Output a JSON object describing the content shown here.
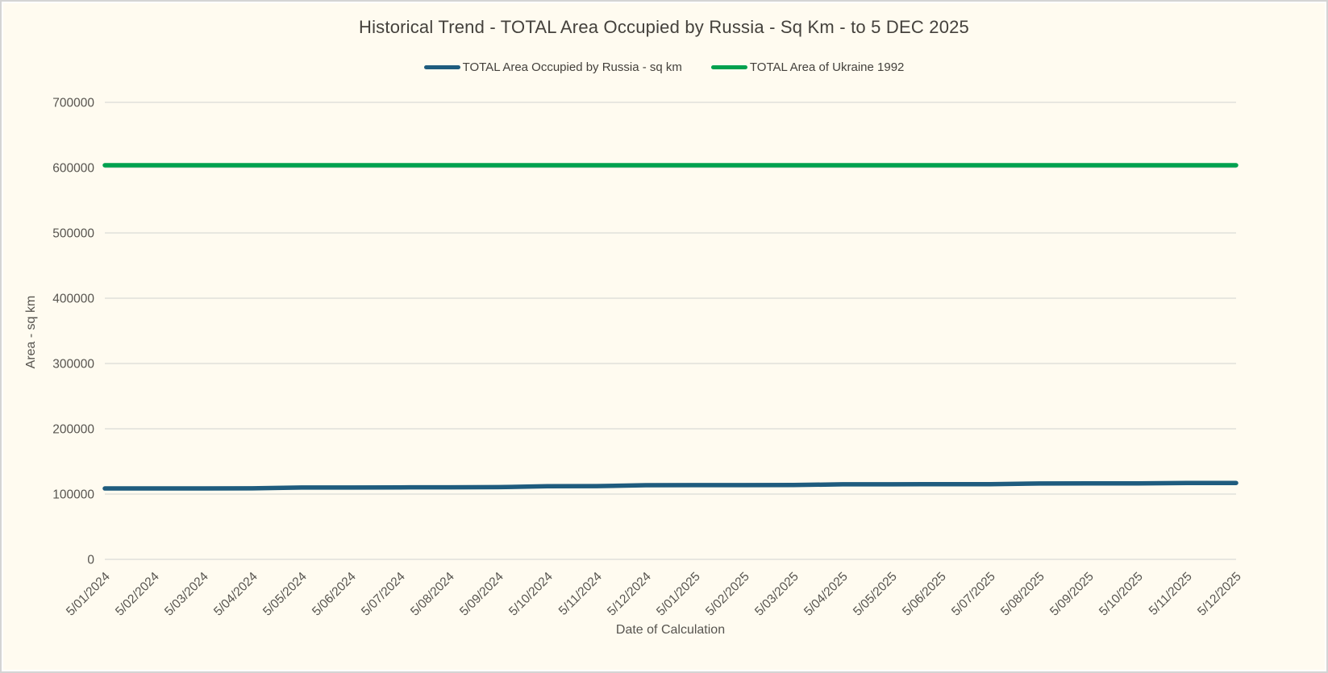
{
  "window": {
    "background": "#FFFBF0",
    "border_color": "#D4D4D4"
  },
  "chart_data": {
    "type": "line",
    "title": "Historical Trend - TOTAL Area Occupied by Russia - Sq Km - to 5 DEC 2025",
    "xlabel": "Date of Calculation",
    "ylabel": "Area - sq km",
    "ylim": [
      0,
      700000
    ],
    "ytick_step": 100000,
    "grid": true,
    "grid_color": "#DBDBD6",
    "legend_position": "top",
    "categories": [
      "5/01/2024",
      "5/02/2024",
      "5/03/2024",
      "5/04/2024",
      "5/05/2024",
      "5/06/2024",
      "5/07/2024",
      "5/08/2024",
      "5/09/2024",
      "5/10/2024",
      "5/11/2024",
      "5/12/2024",
      "5/01/2025",
      "5/02/2025",
      "5/03/2025",
      "5/04/2025",
      "5/05/2025",
      "5/06/2025",
      "5/07/2025",
      "5/08/2025",
      "5/09/2025",
      "5/10/2025",
      "5/11/2025",
      "5/12/2025"
    ],
    "series": [
      {
        "name": "TOTAL Area Occupied by Russia - sq km",
        "color": "#1F5C7E",
        "values": [
          108600,
          108650,
          108700,
          108800,
          110000,
          110100,
          110250,
          110400,
          110600,
          112000,
          112200,
          113600,
          113700,
          113800,
          113900,
          114900,
          115000,
          115100,
          115200,
          116200,
          116300,
          116400,
          116900,
          117000
        ]
      },
      {
        "name": "TOTAL Area of Ukraine 1992",
        "color": "#00A14F",
        "values": [
          603628,
          603628,
          603628,
          603628,
          603628,
          603628,
          603628,
          603628,
          603628,
          603628,
          603628,
          603628,
          603628,
          603628,
          603628,
          603628,
          603628,
          603628,
          603628,
          603628,
          603628,
          603628,
          603628,
          603628
        ]
      }
    ]
  }
}
